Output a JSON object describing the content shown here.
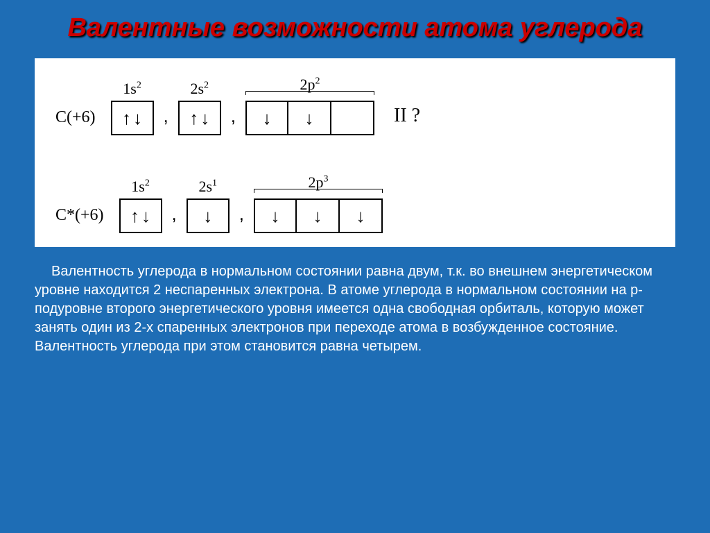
{
  "colors": {
    "slide_bg": "#1e6db5",
    "title_color": "#cc0000",
    "title_shadow": "#000000",
    "diagram_bg": "#ffffff",
    "box_border": "#000000",
    "text_color": "#ffffff",
    "diagram_text": "#000000"
  },
  "title": "Валентные возможности атома углерода",
  "configs": [
    {
      "label": "C(+6)",
      "groups": [
        {
          "sublabel_base": "1s",
          "sublabel_exp": "2",
          "boxes": [
            [
              "↑",
              "↓"
            ]
          ],
          "bracket": false
        },
        {
          "sublabel_base": "2s",
          "sublabel_exp": "2",
          "boxes": [
            [
              "↑",
              "↓"
            ]
          ],
          "bracket": false
        },
        {
          "sublabel_base": "2p",
          "sublabel_exp": "2",
          "boxes": [
            [
              "↓"
            ],
            [
              "↓"
            ],
            []
          ],
          "bracket": true
        }
      ],
      "trailing": "II ?"
    },
    {
      "label": "C*(+6)",
      "groups": [
        {
          "sublabel_base": "1s",
          "sublabel_exp": "2",
          "boxes": [
            [
              "↑",
              "↓"
            ]
          ],
          "bracket": false
        },
        {
          "sublabel_base": "2s",
          "sublabel_exp": "1",
          "boxes": [
            [
              "↓"
            ]
          ],
          "bracket": false
        },
        {
          "sublabel_base": "2p",
          "sublabel_exp": "3",
          "boxes": [
            [
              "↓"
            ],
            [
              "↓"
            ],
            [
              "↓"
            ]
          ],
          "bracket": true
        }
      ],
      "trailing": ""
    }
  ],
  "description": "Валентность углерода в нормальном состоянии равна двум, т.к. во внешнем энергетическом уровне находится 2 неспаренных электрона. В атоме углерода в нормальном состоянии на р-подуровне второго энергетического уровня имеется одна свободная орбиталь, которую может занять один из 2-х спаренных электронов при переходе атома в возбужденное состояние. Валентность углерода при этом становится равна четырем."
}
